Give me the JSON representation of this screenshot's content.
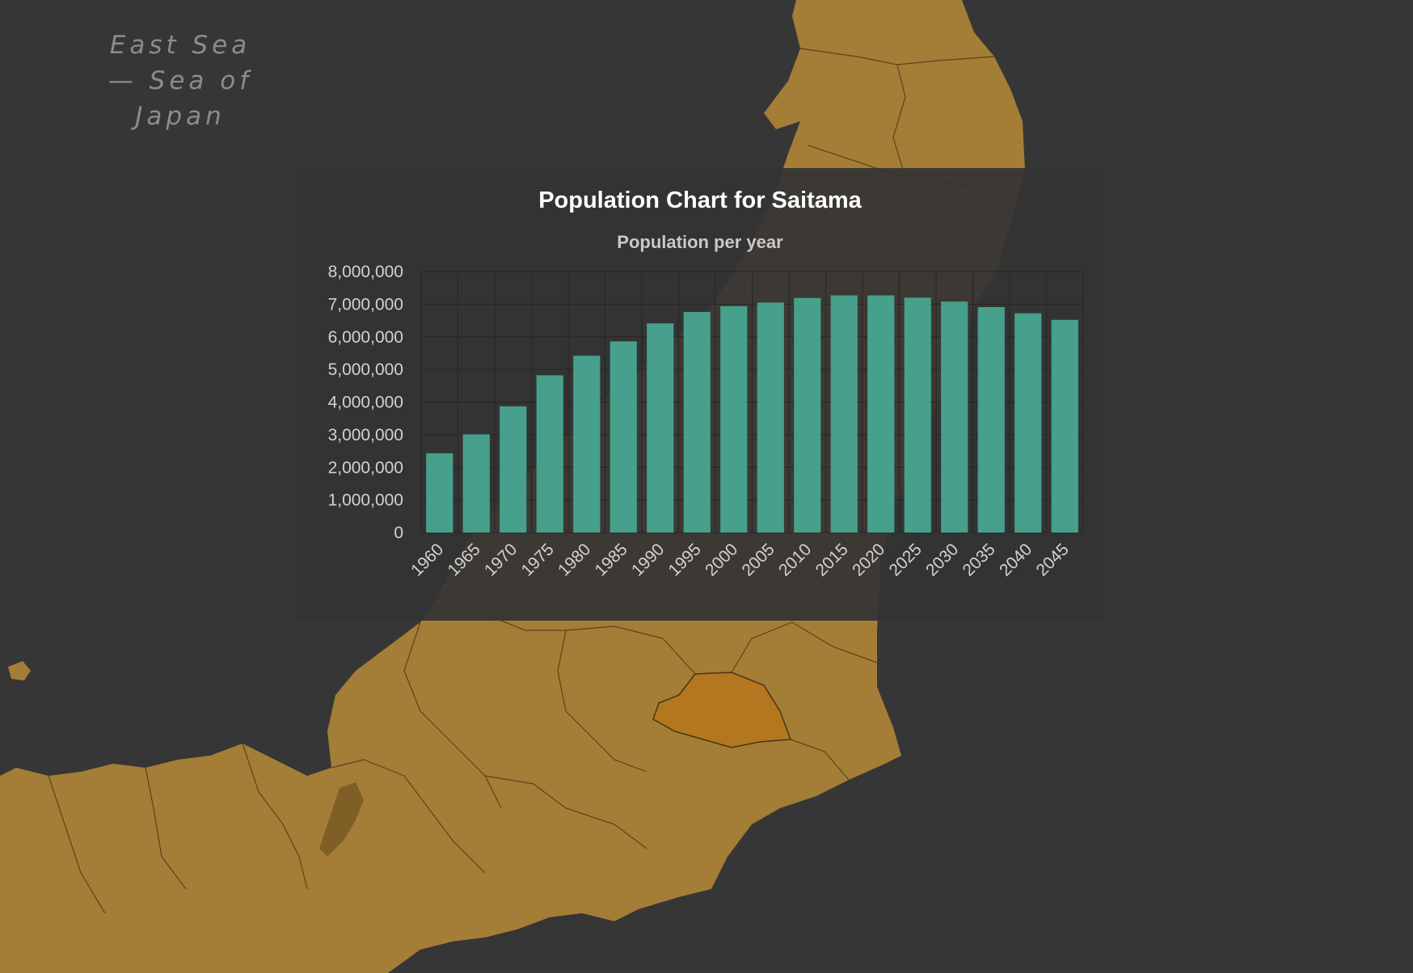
{
  "map": {
    "sea_label": "East Sea — Sea of Japan",
    "land_color": "#a47d37",
    "highlight_color": "#b3771f",
    "sea_color": "#373636"
  },
  "chart_data": {
    "type": "bar",
    "title": "Population Chart for Saitama",
    "subtitle": "Population per year",
    "xlabel": "",
    "ylabel": "",
    "categories": [
      "1960",
      "1965",
      "1970",
      "1975",
      "1980",
      "1985",
      "1990",
      "1995",
      "2000",
      "2005",
      "2010",
      "2015",
      "2020",
      "2025",
      "2030",
      "2035",
      "2040",
      "2045"
    ],
    "series": [
      {
        "values": [
          2430000,
          3010000,
          3870000,
          4820000,
          5420000,
          5860000,
          6410000,
          6760000,
          6940000,
          7050000,
          7190000,
          7270000,
          7270000,
          7200000,
          7080000,
          6910000,
          6720000,
          6520000
        ],
        "color": "#46a08b"
      }
    ],
    "ylim": [
      0,
      8000000
    ],
    "yticks": [
      "0",
      "1,000,000",
      "2,000,000",
      "3,000,000",
      "4,000,000",
      "5,000,000",
      "6,000,000",
      "7,000,000",
      "8,000,000"
    ],
    "grid": true,
    "legend": "none"
  }
}
